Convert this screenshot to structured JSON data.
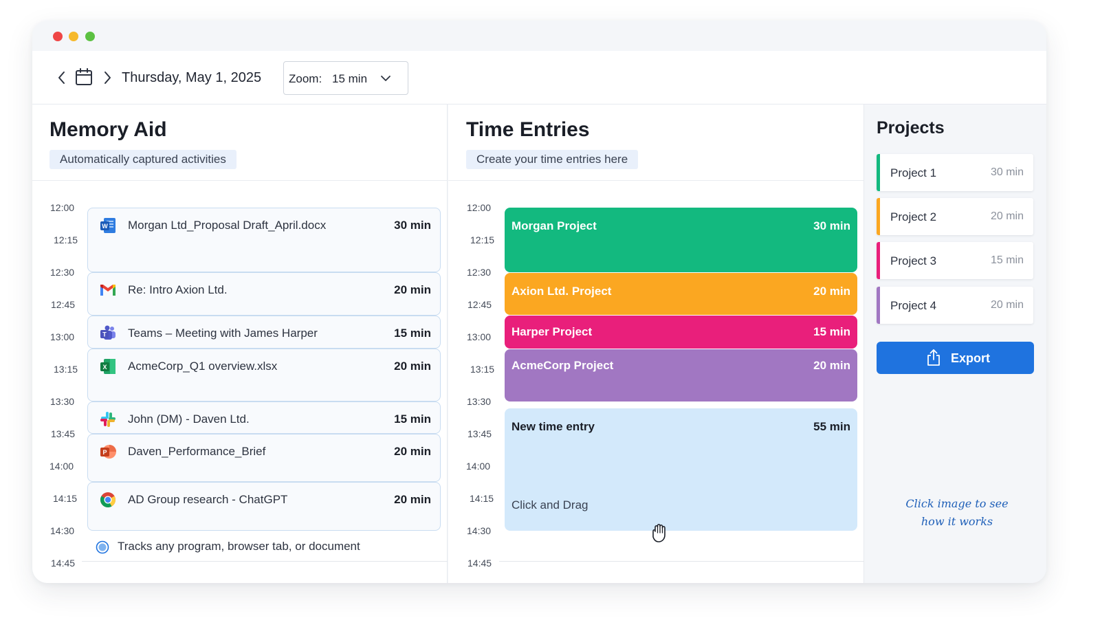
{
  "toolbar": {
    "date": "Thursday, May 1, 2025",
    "zoom_label": "Zoom:",
    "zoom_value": "15 min"
  },
  "memory_aid": {
    "title": "Memory Aid",
    "subtitle": "Automatically captured activities",
    "time_labels": [
      "12:00",
      "12:15",
      "12:30",
      "12:45",
      "13:00",
      "13:15",
      "13:30",
      "13:45",
      "14:00",
      "14:15",
      "14:30",
      "14:45"
    ],
    "activities": [
      {
        "icon": "word-icon",
        "title": "Morgan Ltd_Proposal Draft_April.docx",
        "duration": "30 min"
      },
      {
        "icon": "gmail-icon",
        "title": "Re: Intro Axion Ltd.",
        "duration": "20 min"
      },
      {
        "icon": "teams-icon",
        "title": "Teams – Meeting with James Harper",
        "duration": "15 min"
      },
      {
        "icon": "excel-icon",
        "title": "AcmeCorp_Q1 overview.xlsx",
        "duration": "20 min"
      },
      {
        "icon": "slack-icon",
        "title": "John (DM) - Daven Ltd.",
        "duration": "15 min"
      },
      {
        "icon": "powerpoint-icon",
        "title": "Daven_Performance_Brief",
        "duration": "20 min"
      },
      {
        "icon": "chrome-icon",
        "title": "AD Group research - ChatGPT",
        "duration": "20 min"
      }
    ],
    "footnote": "Tracks any program, browser tab, or document"
  },
  "time_entries": {
    "title": "Time Entries",
    "subtitle": "Create your time entries here",
    "time_labels": [
      "12:00",
      "12:15",
      "12:30",
      "12:45",
      "13:00",
      "13:15",
      "13:30",
      "13:45",
      "14:00",
      "14:15",
      "14:30",
      "14:45"
    ],
    "entries": [
      {
        "title": "Morgan Project",
        "duration": "30 min",
        "color": "#13b97f"
      },
      {
        "title": "Axion Ltd. Project",
        "duration": "20 min",
        "color": "#fba721"
      },
      {
        "title": "Harper Project",
        "duration": "15 min",
        "color": "#e91f7b"
      },
      {
        "title": "AcmeCorp Project",
        "duration": "20 min",
        "color": "#a177c2"
      }
    ],
    "new_entry": {
      "title": "New time entry",
      "duration": "55 min",
      "hint": "Click and Drag",
      "color": "#d3e9fb"
    }
  },
  "projects": {
    "title": "Projects",
    "items": [
      {
        "name": "Project 1",
        "duration": "30 min",
        "color": "#13b97f"
      },
      {
        "name": "Project 2",
        "duration": "20 min",
        "color": "#fba721"
      },
      {
        "name": "Project 3",
        "duration": "15 min",
        "color": "#e91f7b"
      },
      {
        "name": "Project 4",
        "duration": "20 min",
        "color": "#a177c2"
      }
    ],
    "export_label": "Export",
    "hint_line1": "Click image to see",
    "hint_line2": "how it works"
  }
}
